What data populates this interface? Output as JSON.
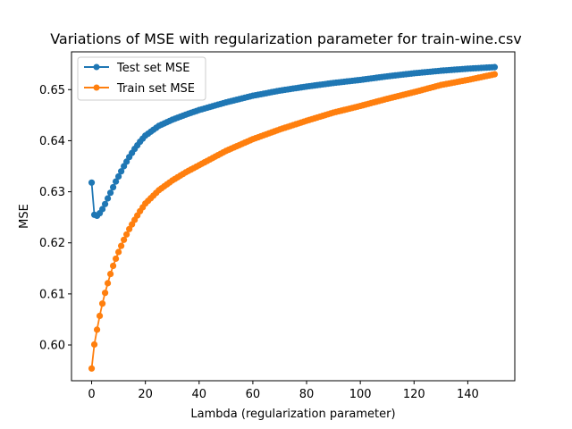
{
  "chart_data": {
    "type": "line",
    "title": "Variations of MSE with regularization parameter for train-wine.csv",
    "xlabel": "Lambda (regularization parameter)",
    "ylabel": "MSE",
    "xlim": [
      -7.5,
      157.5
    ],
    "ylim": [
      0.593,
      0.6574
    ],
    "xticks": [
      0,
      20,
      40,
      60,
      80,
      100,
      120,
      140
    ],
    "yticks": [
      0.6,
      0.61,
      0.62,
      0.63,
      0.64,
      0.65
    ],
    "ytick_labels": [
      "0.60",
      "0.61",
      "0.62",
      "0.63",
      "0.64",
      "0.65"
    ],
    "grid": false,
    "legend_position": "upper left",
    "series": [
      {
        "name": "Test set MSE",
        "color": "#1f77b4",
        "marker": "circle",
        "x": [
          0,
          1,
          2,
          3,
          4,
          5,
          6,
          7,
          8,
          9,
          10,
          12,
          14,
          16,
          18,
          20,
          25,
          30,
          35,
          40,
          50,
          60,
          70,
          80,
          90,
          100,
          110,
          120,
          130,
          140,
          150
        ],
        "y": [
          0.6318,
          0.6255,
          0.6253,
          0.6258,
          0.6266,
          0.6276,
          0.6287,
          0.6298,
          0.6309,
          0.632,
          0.633,
          0.635,
          0.6368,
          0.6384,
          0.6398,
          0.641,
          0.6429,
          0.6441,
          0.6451,
          0.646,
          0.6475,
          0.6488,
          0.6498,
          0.6506,
          0.6513,
          0.6519,
          0.6526,
          0.6532,
          0.6537,
          0.6541,
          0.6544
        ]
      },
      {
        "name": "Train set MSE",
        "color": "#ff7f0e",
        "marker": "circle",
        "x": [
          0,
          1,
          2,
          3,
          4,
          5,
          6,
          7,
          8,
          9,
          10,
          12,
          14,
          16,
          18,
          20,
          25,
          30,
          35,
          40,
          50,
          60,
          70,
          80,
          90,
          100,
          110,
          120,
          130,
          140,
          150
        ],
        "y": [
          0.5954,
          0.6001,
          0.603,
          0.6057,
          0.6081,
          0.6102,
          0.6121,
          0.6139,
          0.6155,
          0.6169,
          0.6182,
          0.6206,
          0.6227,
          0.6245,
          0.6262,
          0.6277,
          0.6303,
          0.6322,
          0.6338,
          0.6352,
          0.638,
          0.6403,
          0.6422,
          0.6439,
          0.6455,
          0.6468,
          0.6482,
          0.6495,
          0.6509,
          0.6519,
          0.653
        ]
      }
    ]
  }
}
